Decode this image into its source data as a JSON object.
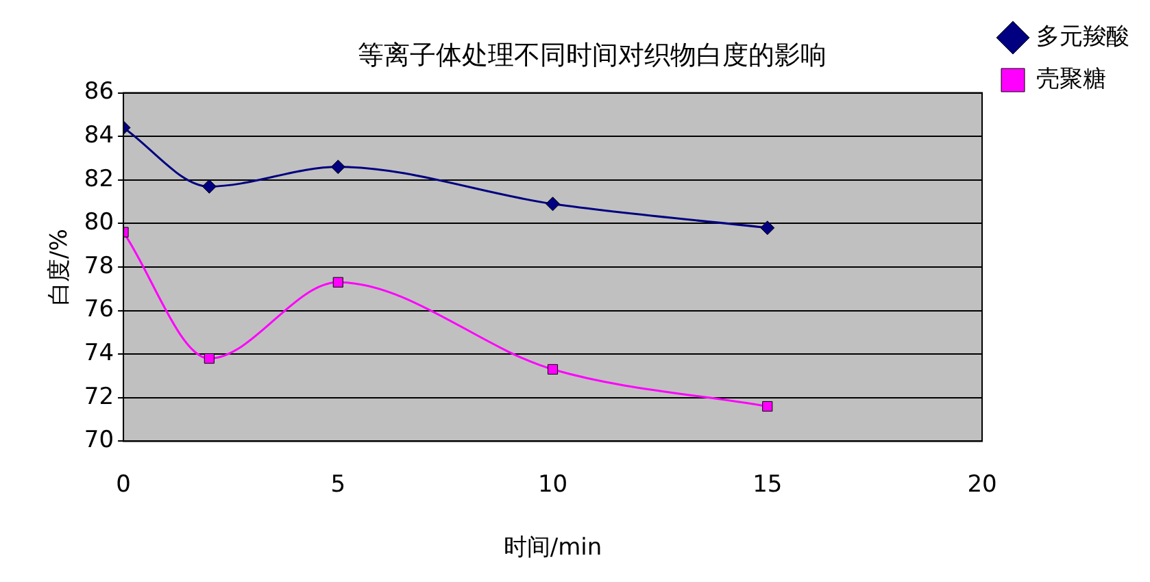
{
  "chart_data": {
    "type": "line",
    "title": "等离子体处理不同时间对织物白度的影响",
    "xlabel": "时间/min",
    "ylabel": "白度/%",
    "x": [
      0,
      2,
      5,
      10,
      15
    ],
    "series": [
      {
        "name": "多元羧酸",
        "color": "#000080",
        "marker": "diamond",
        "values": [
          84.4,
          81.7,
          82.6,
          80.9,
          79.8
        ]
      },
      {
        "name": "壳聚糖",
        "color": "#ff00ff",
        "marker": "square",
        "values": [
          79.6,
          73.8,
          77.3,
          73.3,
          71.6
        ]
      }
    ],
    "xlim": [
      0,
      20
    ],
    "xticks": [
      0,
      5,
      10,
      15,
      20
    ],
    "ylim": [
      70,
      86
    ],
    "yticks": [
      70,
      72,
      74,
      76,
      78,
      80,
      82,
      84,
      86
    ],
    "grid": "y",
    "legend": "top right"
  }
}
